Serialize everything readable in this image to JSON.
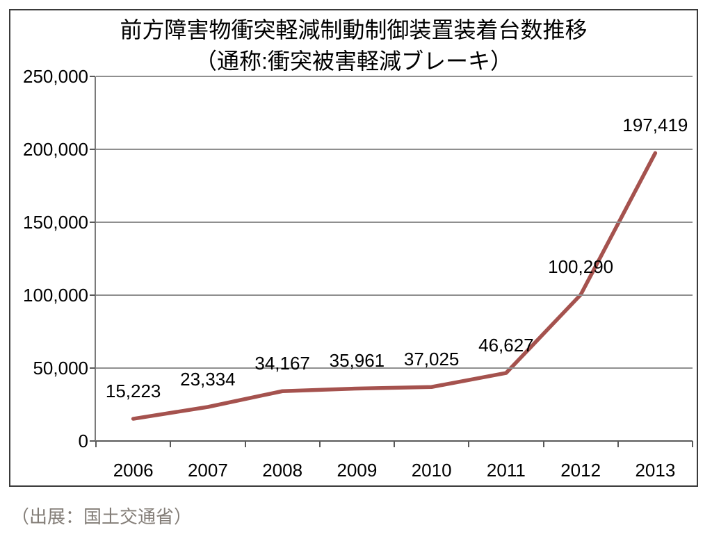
{
  "title": {
    "line1": "前方障害物衝突軽減制動制御装置装着台数推移",
    "line2": "（通称:衝突被害軽減ブレーキ）"
  },
  "source_note": "（出展：国土交通省）",
  "chart_data": {
    "type": "line",
    "title": "前方障害物衝突軽減制動制御装置装着台数推移（通称:衝突被害軽減ブレーキ）",
    "categories": [
      "2006",
      "2007",
      "2008",
      "2009",
      "2010",
      "2011",
      "2012",
      "2013"
    ],
    "values": [
      15223,
      23334,
      34167,
      35961,
      37025,
      46627,
      100290,
      197419
    ],
    "value_labels": [
      "15,223",
      "23,334",
      "34,167",
      "35,961",
      "37,025",
      "46,627",
      "100,290",
      "197,419"
    ],
    "xlabel": "",
    "ylabel": "",
    "ylim": [
      0,
      250000
    ],
    "y_tick_interval": 50000,
    "y_tick_labels": [
      "0",
      "50,000",
      "100,000",
      "150,000",
      "200,000",
      "250,000"
    ],
    "grid": true,
    "legend": "none",
    "line_color": "#a5524e",
    "grid_color": "#8f8f8f",
    "axis_color": "#595959"
  }
}
